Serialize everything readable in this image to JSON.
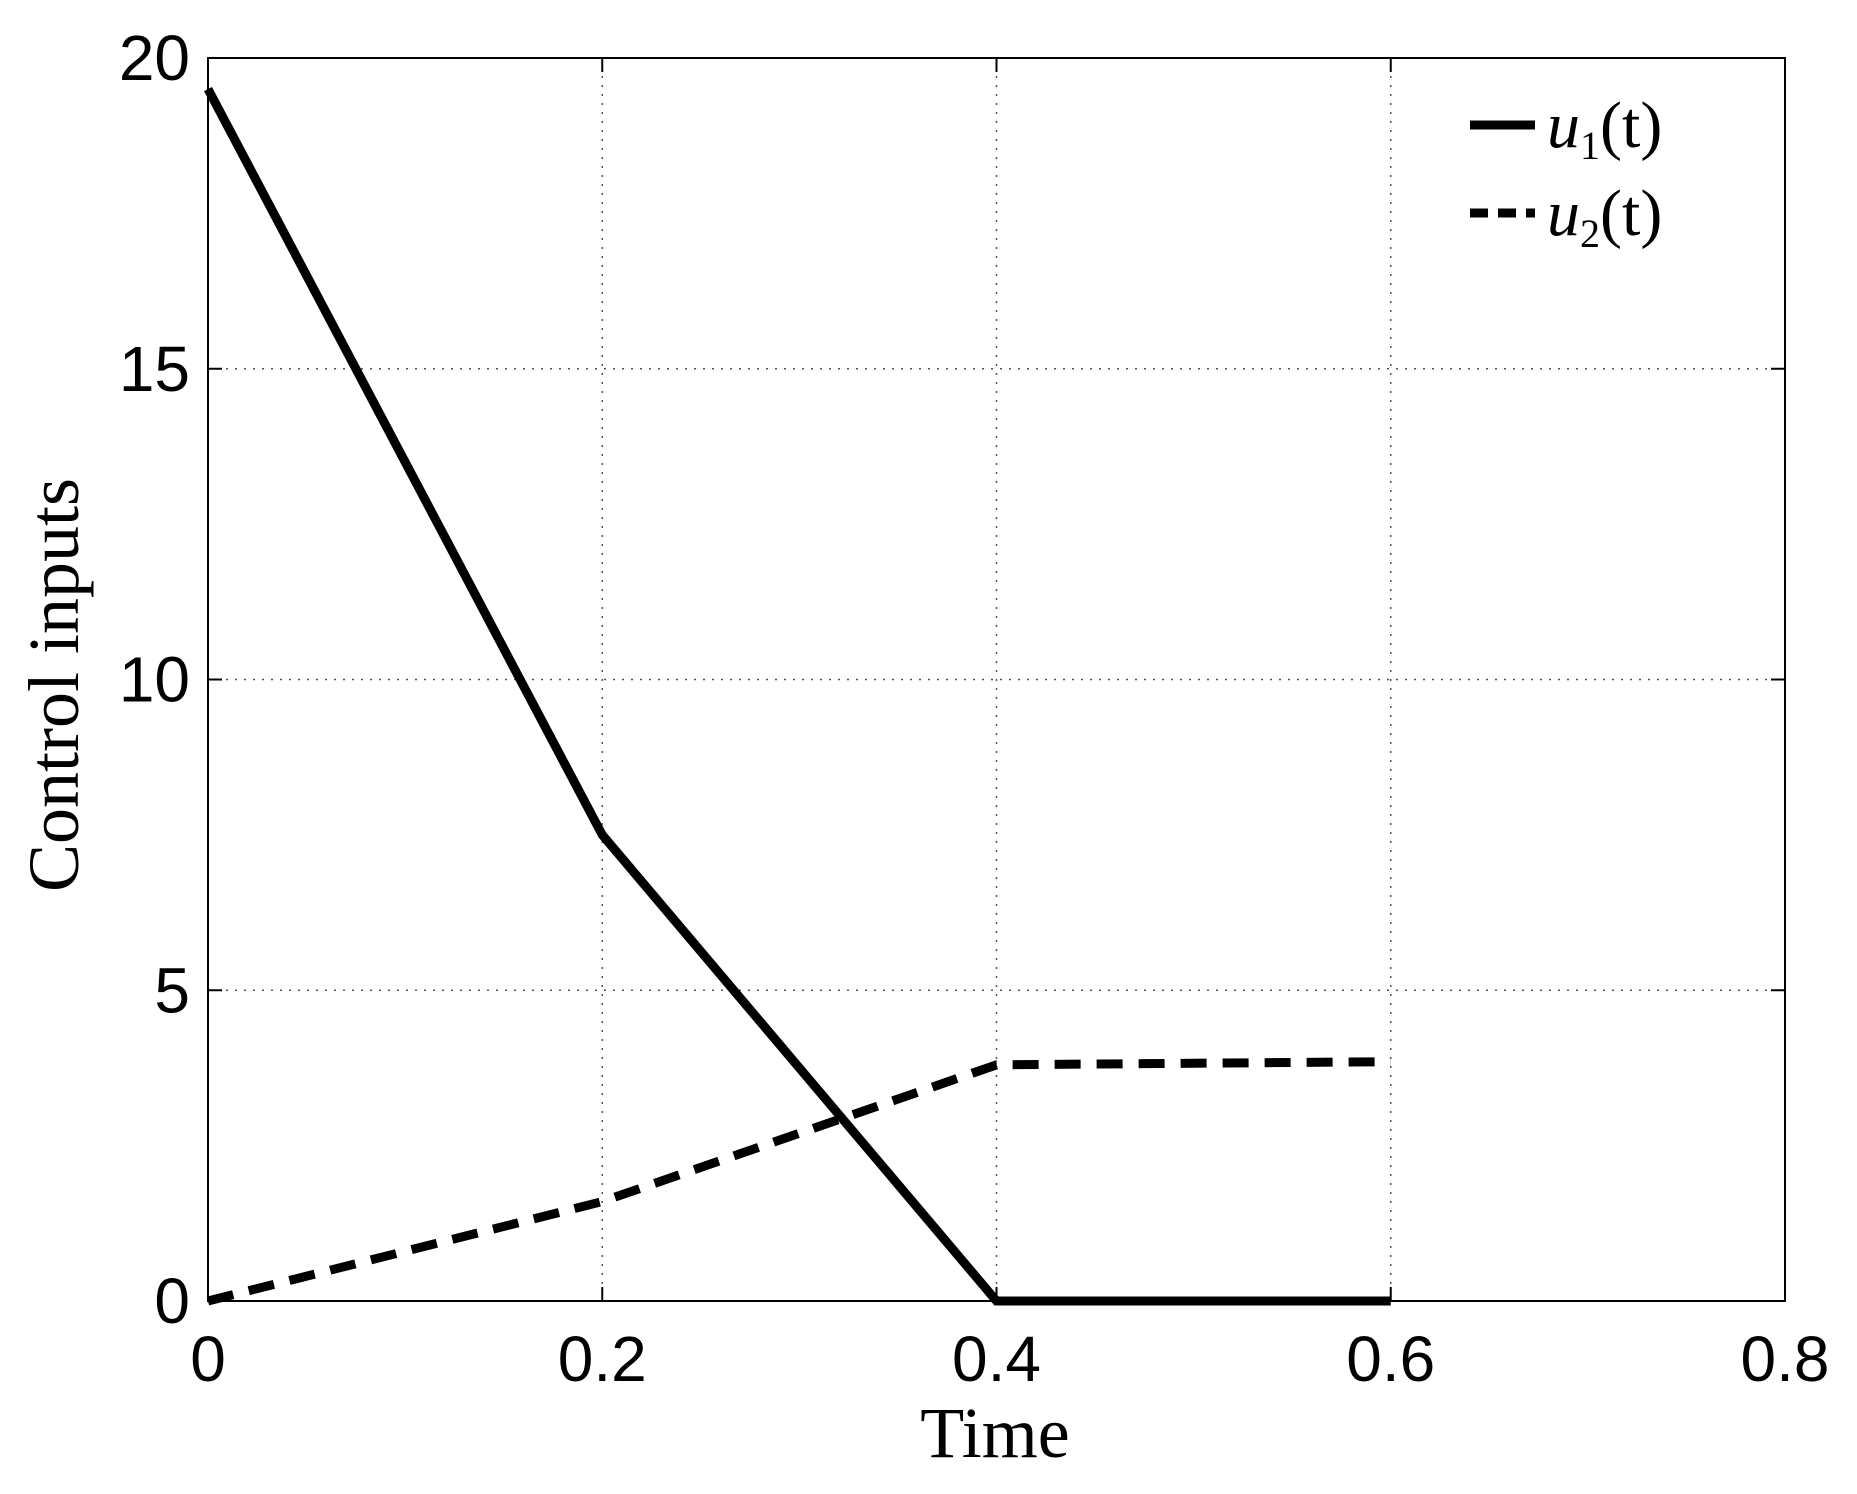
{
  "chart_data": {
    "type": "line",
    "xlabel": "Time",
    "ylabel": "Control inputs",
    "xlim": [
      0,
      0.8
    ],
    "ylim": [
      0,
      20
    ],
    "xticks": [
      0,
      0.2,
      0.4,
      0.6,
      0.8
    ],
    "xtick_labels": [
      "0",
      "0.2",
      "0.4",
      "0.6",
      "0.8"
    ],
    "yticks": [
      0,
      5,
      10,
      15,
      20
    ],
    "ytick_labels": [
      "0",
      "5",
      "10",
      "15",
      "20"
    ],
    "grid": true,
    "legend_position": "top-right",
    "series": [
      {
        "name": "u1(t)",
        "legend_base": "u",
        "legend_sub": "1",
        "legend_tail": "(t)",
        "style": "solid",
        "color": "#000000",
        "x": [
          0,
          0.2,
          0.4,
          0.6
        ],
        "y": [
          19.5,
          7.5,
          0,
          0
        ]
      },
      {
        "name": "u2(t)",
        "legend_base": "u",
        "legend_sub": "2",
        "legend_tail": "(t)",
        "style": "dashed",
        "color": "#000000",
        "x": [
          0,
          0.2,
          0.4,
          0.6
        ],
        "y": [
          0,
          1.6,
          3.8,
          3.85
        ]
      }
    ]
  }
}
